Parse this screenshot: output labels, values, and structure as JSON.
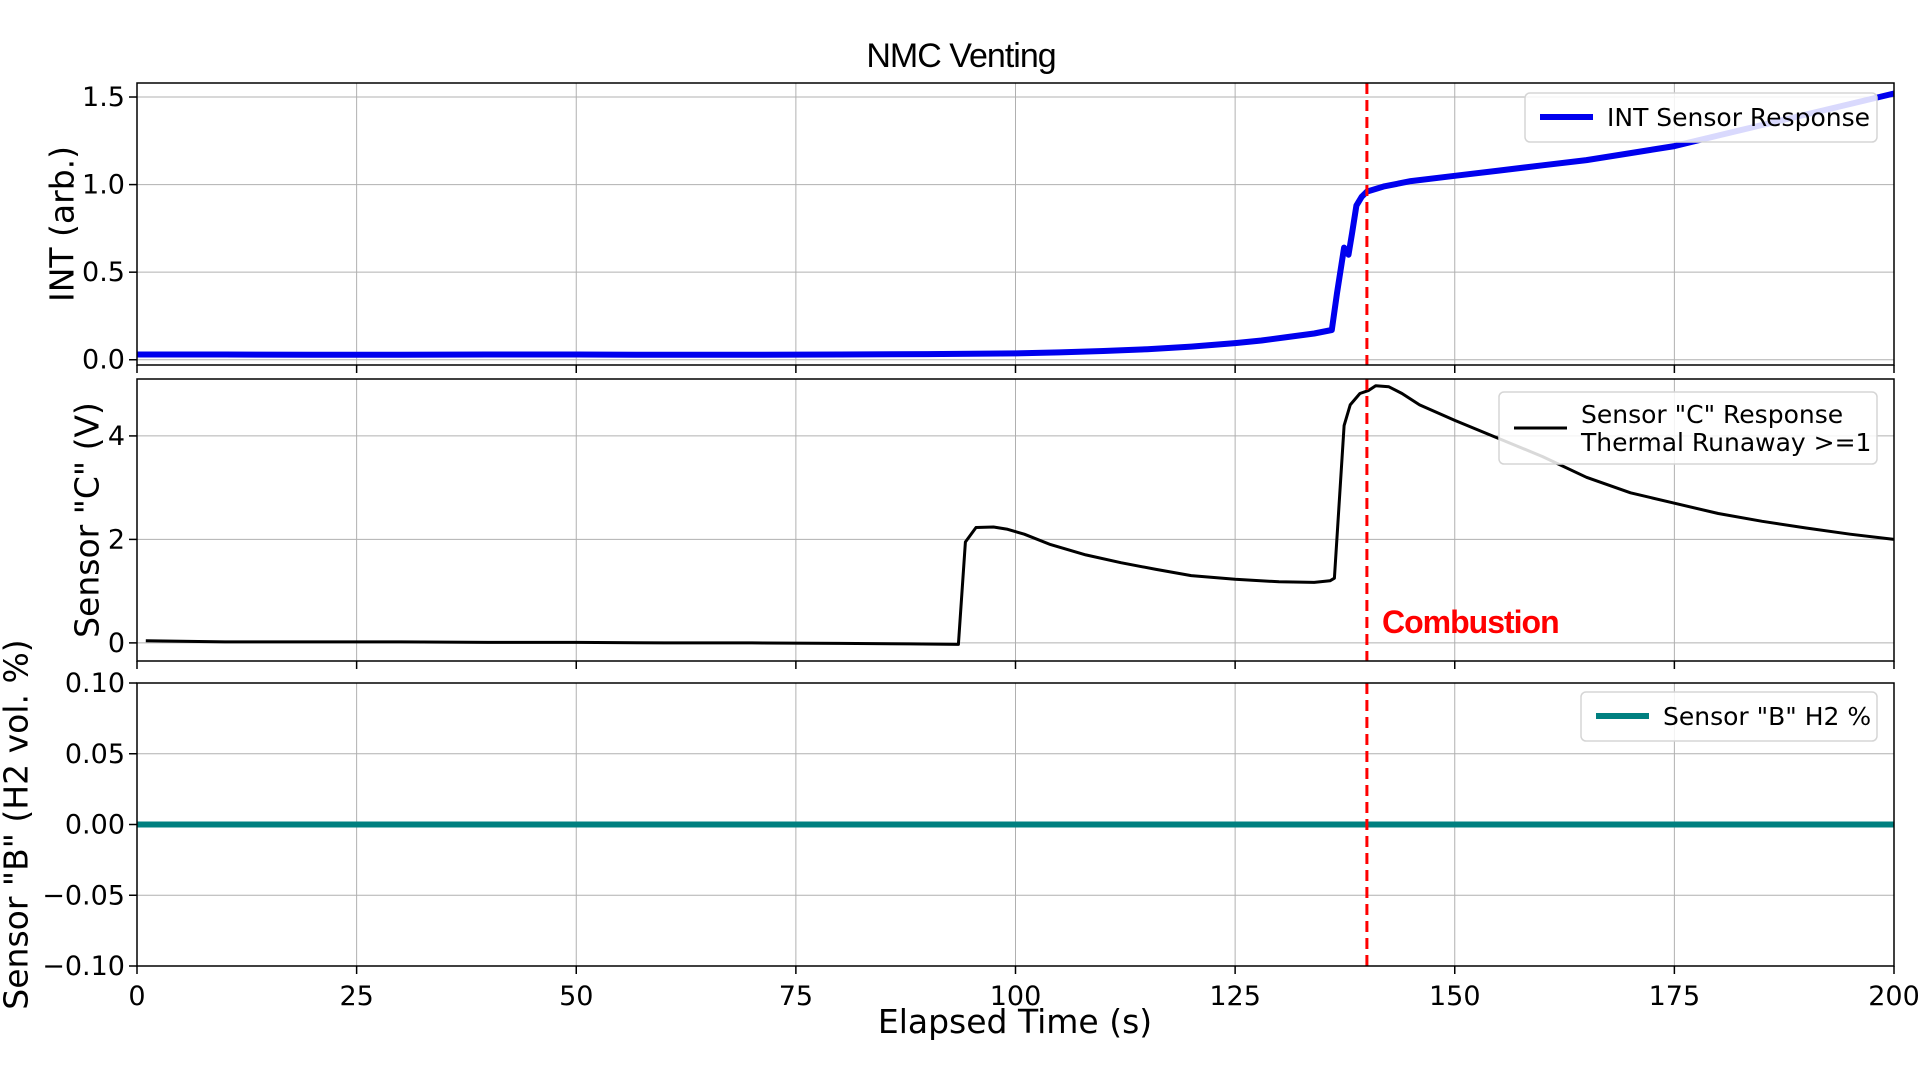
{
  "chart_data": {
    "type": "line",
    "title": "NMC Venting",
    "xlabel": "Elapsed Time (s)",
    "xlim": [
      0,
      200
    ],
    "xticks": [
      0,
      25,
      50,
      75,
      100,
      125,
      150,
      175,
      200
    ],
    "xtick_labels": [
      "0",
      "25",
      "50",
      "75",
      "100",
      "125",
      "150",
      "175",
      "200"
    ],
    "grid": true,
    "vline": {
      "x": 140,
      "color": "#ff0000",
      "style": "dashed"
    },
    "annotation": {
      "text": "Combustion",
      "x": 141.5,
      "y": 0.4,
      "color": "#ff0000"
    },
    "panels": [
      {
        "ylabel": "INT (arb.)",
        "ylim": [
          -0.03,
          1.58
        ],
        "yticks": [
          0.0,
          0.5,
          1.0,
          1.5
        ],
        "ytick_labels": [
          "0.0",
          "0.5",
          "1.0",
          "1.5"
        ],
        "legend_position": "top-right",
        "series": [
          {
            "name": "INT Sensor Response",
            "color": "#0000ee",
            "x": [
              0,
              10,
              20,
              30,
              40,
              50,
              60,
              70,
              80,
              90,
              95,
              100,
              105,
              110,
              115,
              120,
              125,
              128,
              131,
              134,
              136,
              136.6,
              137.4,
              137.9,
              138.3,
              138.8,
              139.4,
              140,
              142,
              145,
              150,
              155,
              160,
              165,
              170,
              175,
              180,
              185,
              190,
              195,
              200
            ],
            "y": [
              0.03,
              0.03,
              0.028,
              0.028,
              0.03,
              0.03,
              0.028,
              0.028,
              0.03,
              0.032,
              0.034,
              0.036,
              0.042,
              0.05,
              0.06,
              0.075,
              0.095,
              0.11,
              0.13,
              0.15,
              0.17,
              0.38,
              0.64,
              0.6,
              0.72,
              0.88,
              0.93,
              0.96,
              0.99,
              1.02,
              1.05,
              1.08,
              1.11,
              1.14,
              1.18,
              1.22,
              1.28,
              1.34,
              1.4,
              1.46,
              1.52
            ]
          }
        ]
      },
      {
        "ylabel": "Sensor \"C\" (V)",
        "ylim": [
          -0.35,
          5.1
        ],
        "yticks": [
          0,
          2,
          4
        ],
        "ytick_labels": [
          "0",
          "2",
          "4"
        ],
        "legend_position": "top-right",
        "series": [
          {
            "name": "Sensor \"C\" Response\nThermal Runaway >=1",
            "color": "#000000",
            "x": [
              1,
              10,
              20,
              30,
              40,
              50,
              60,
              70,
              80,
              88,
              93.5,
              94.3,
              95.5,
              97.5,
              99,
              101,
              104,
              108,
              112,
              116,
              120,
              125,
              130,
              134,
              135.8,
              136.3,
              137.4,
              138.1,
              139.2,
              140.2,
              141,
              142.5,
              144,
              146,
              150,
              155,
              160,
              165,
              170,
              175,
              180,
              185,
              190,
              195,
              200
            ],
            "y": [
              0.04,
              0.02,
              0.02,
              0.02,
              0.01,
              0.01,
              0.0,
              0.0,
              -0.01,
              -0.02,
              -0.03,
              1.95,
              2.23,
              2.24,
              2.2,
              2.1,
              1.9,
              1.7,
              1.55,
              1.42,
              1.3,
              1.23,
              1.18,
              1.17,
              1.2,
              1.25,
              4.2,
              4.6,
              4.82,
              4.88,
              4.97,
              4.95,
              4.82,
              4.6,
              4.3,
              3.95,
              3.6,
              3.2,
              2.9,
              2.7,
              2.5,
              2.35,
              2.22,
              2.1,
              2.0
            ]
          }
        ]
      },
      {
        "ylabel": "Sensor \"B\" (H2 vol. %)",
        "ylim": [
          -0.1,
          0.1
        ],
        "yticks": [
          -0.1,
          -0.05,
          0.0,
          0.05,
          0.1
        ],
        "ytick_labels": [
          "−0.10",
          "−0.05",
          "0.00",
          "0.05",
          "0.10"
        ],
        "legend_position": "top-right",
        "series": [
          {
            "name": "Sensor \"B\" H2 %",
            "color": "#008080",
            "x": [
              0,
              200
            ],
            "y": [
              0.0,
              0.0
            ]
          }
        ]
      }
    ]
  }
}
